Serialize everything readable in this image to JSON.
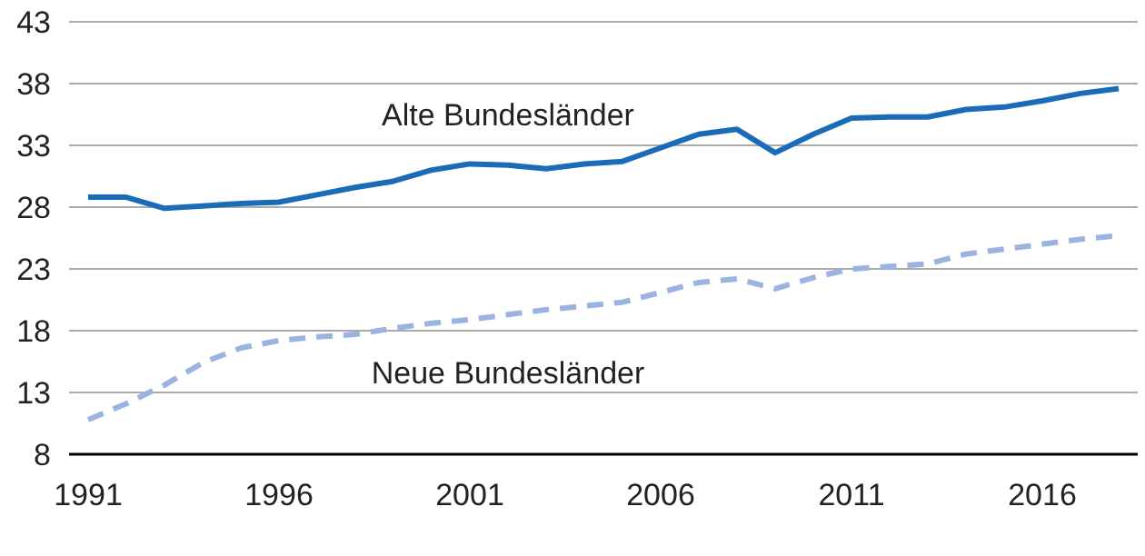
{
  "chart_data": {
    "type": "line",
    "x": [
      1991,
      1992,
      1993,
      1994,
      1995,
      1996,
      1997,
      1998,
      1999,
      2000,
      2001,
      2002,
      2003,
      2004,
      2005,
      2006,
      2007,
      2008,
      2009,
      2010,
      2011,
      2012,
      2013,
      2014,
      2015,
      2016,
      2017,
      2018
    ],
    "series": [
      {
        "name": "Alte Bundesländer",
        "color": "#1a6bb8",
        "line_style": "solid",
        "values": [
          28.8,
          28.8,
          27.9,
          28.1,
          28.3,
          28.4,
          29.0,
          29.6,
          30.1,
          31.0,
          31.5,
          31.4,
          31.1,
          31.5,
          31.7,
          32.8,
          33.9,
          34.3,
          32.4,
          33.9,
          35.2,
          35.3,
          35.3,
          35.9,
          36.1,
          36.6,
          37.2,
          37.6
        ]
      },
      {
        "name": "Neue Bundesländer",
        "color": "#9ab3e0",
        "line_style": "dashed",
        "values": [
          10.8,
          12.1,
          13.6,
          15.4,
          16.6,
          17.2,
          17.5,
          17.7,
          18.2,
          18.6,
          18.9,
          19.3,
          19.7,
          20.0,
          20.3,
          21.1,
          21.9,
          22.2,
          21.4,
          22.3,
          23.0,
          23.2,
          23.4,
          24.2,
          24.6,
          25.0,
          25.4,
          25.7
        ]
      }
    ],
    "xlim": [
      1990.5,
      2018.5
    ],
    "xticks": [
      1991,
      1996,
      2001,
      2006,
      2011,
      2016
    ],
    "ylim": [
      8,
      43
    ],
    "yticks": [
      8,
      13,
      18,
      23,
      28,
      33,
      38,
      43
    ],
    "grid": "y",
    "marker": "none",
    "legend": false
  }
}
